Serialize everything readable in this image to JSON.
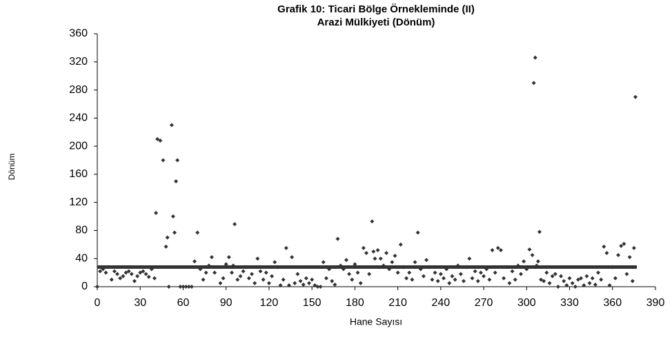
{
  "chart_data": {
    "type": "scatter",
    "title": "Grafik 10: Ticari Bölge Örnekleminde (II)",
    "subtitle": "Arazi Mülkiyeti (Dönüm)",
    "x_label": "Hane Sayısı",
    "y_label": "Dönüm",
    "xlim": [
      0,
      390
    ],
    "xticks": [
      0,
      30,
      60,
      90,
      120,
      150,
      180,
      210,
      240,
      270,
      300,
      330,
      360,
      390
    ],
    "ylim": [
      0,
      360
    ],
    "yticks": [
      0,
      40,
      80,
      120,
      160,
      200,
      240,
      280,
      320,
      360
    ],
    "grid": false,
    "series": [
      {
        "style": "markers",
        "color": "#333333",
        "x": [
          0,
          2,
          4,
          6,
          8,
          10,
          12,
          14,
          16,
          18,
          20,
          22,
          24,
          26,
          28,
          30,
          32,
          34,
          36,
          38,
          40,
          41,
          42,
          44,
          46,
          48,
          49,
          50,
          52,
          53,
          54,
          55,
          56,
          58,
          60,
          62,
          64,
          66,
          68,
          70,
          72,
          74,
          76,
          78,
          80,
          82,
          84,
          86,
          88,
          90,
          92,
          94,
          95,
          96,
          98,
          100,
          102,
          104,
          106,
          108,
          110,
          112,
          114,
          116,
          118,
          120,
          122,
          124,
          126,
          128,
          130,
          132,
          134,
          136,
          138,
          140,
          142,
          144,
          146,
          148,
          150,
          152,
          154,
          156,
          158,
          160,
          162,
          164,
          166,
          168,
          170,
          172,
          174,
          176,
          178,
          180,
          182,
          184,
          186,
          188,
          190,
          192,
          193,
          194,
          196,
          198,
          200,
          202,
          204,
          206,
          208,
          210,
          212,
          214,
          216,
          218,
          220,
          222,
          224,
          226,
          228,
          230,
          232,
          234,
          236,
          238,
          240,
          242,
          244,
          246,
          248,
          250,
          252,
          254,
          256,
          258,
          260,
          262,
          264,
          266,
          268,
          270,
          272,
          274,
          276,
          278,
          280,
          282,
          284,
          286,
          288,
          290,
          292,
          294,
          296,
          298,
          300,
          302,
          304,
          305,
          306,
          307,
          308,
          309,
          310,
          312,
          314,
          316,
          318,
          320,
          322,
          324,
          326,
          328,
          330,
          332,
          334,
          336,
          338,
          340,
          342,
          344,
          346,
          348,
          350,
          352,
          354,
          356,
          358,
          360,
          362,
          364,
          366,
          368,
          370,
          372,
          374,
          375,
          376
        ],
        "values": [
          0,
          22,
          25,
          20,
          28,
          10,
          22,
          18,
          12,
          15,
          20,
          22,
          18,
          8,
          15,
          20,
          22,
          18,
          14,
          25,
          12,
          105,
          210,
          208,
          180,
          57,
          70,
          0,
          230,
          100,
          77,
          150,
          180,
          0,
          0,
          0,
          0,
          0,
          36,
          77,
          25,
          10,
          20,
          30,
          42,
          20,
          28,
          5,
          12,
          32,
          42,
          20,
          30,
          89,
          10,
          15,
          22,
          28,
          12,
          18,
          5,
          40,
          22,
          10,
          20,
          5,
          15,
          35,
          28,
          2,
          10,
          55,
          2,
          42,
          5,
          18,
          8,
          3,
          12,
          5,
          10,
          2,
          0,
          0,
          35,
          12,
          25,
          8,
          3,
          68,
          30,
          25,
          38,
          18,
          10,
          32,
          20,
          5,
          55,
          48,
          18,
          93,
          50,
          40,
          52,
          40,
          30,
          48,
          25,
          35,
          44,
          20,
          60,
          28,
          12,
          20,
          10,
          35,
          77,
          25,
          15,
          38,
          28,
          10,
          20,
          8,
          18,
          12,
          25,
          5,
          15,
          10,
          30,
          18,
          8,
          28,
          40,
          12,
          22,
          8,
          20,
          15,
          25,
          10,
          52,
          20,
          55,
          52,
          12,
          28,
          5,
          22,
          10,
          30,
          18,
          36,
          25,
          53,
          45,
          290,
          326,
          30,
          36,
          78,
          10,
          8,
          20,
          5,
          15,
          18,
          0,
          15,
          8,
          2,
          12,
          5,
          0,
          10,
          12,
          2,
          15,
          5,
          12,
          3,
          20,
          10,
          57,
          48,
          2,
          28,
          12,
          45,
          58,
          61,
          18,
          42,
          8,
          55,
          270
        ]
      },
      {
        "style": "line",
        "color": "#333333",
        "x": [
          0,
          377
        ],
        "values": [
          28,
          28
        ]
      }
    ]
  }
}
